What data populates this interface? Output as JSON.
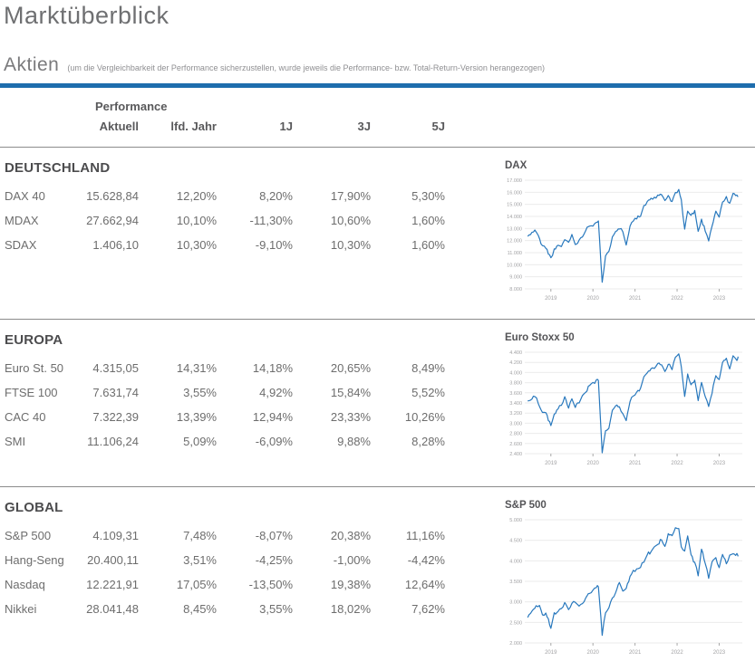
{
  "header": {
    "title": "Marktüberblick",
    "section": "Aktien",
    "note": "(um die Vergleichbarkeit der Performance sicherzustellen, wurde jeweils die Performance- bzw. Total-Return-Version herangezogen)"
  },
  "table": {
    "group_header": "Performance",
    "columns": [
      "Aktuell",
      "lfd. Jahr",
      "1J",
      "3J",
      "5J"
    ],
    "sections": [
      {
        "title": "DEUTSCHLAND",
        "rows": [
          {
            "name": "DAX 40",
            "values": [
              "15.628,84",
              "12,20%",
              "8,20%",
              "17,90%",
              "5,30%"
            ]
          },
          {
            "name": "MDAX",
            "values": [
              "27.662,94",
              "10,10%",
              "-11,30%",
              "10,60%",
              "1,60%"
            ]
          },
          {
            "name": "SDAX",
            "values": [
              "1.406,10",
              "10,30%",
              "-9,10%",
              "10,30%",
              "1,60%"
            ]
          }
        ]
      },
      {
        "title": "EUROPA",
        "rows": [
          {
            "name": "Euro St. 50",
            "values": [
              "4.315,05",
              "14,31%",
              "14,18%",
              "20,65%",
              "8,49%"
            ]
          },
          {
            "name": "FTSE 100",
            "values": [
              "7.631,74",
              "3,55%",
              "4,92%",
              "15,84%",
              "5,52%"
            ]
          },
          {
            "name": "CAC 40",
            "values": [
              "7.322,39",
              "13,39%",
              "12,94%",
              "23,33%",
              "10,26%"
            ]
          },
          {
            "name": "SMI",
            "values": [
              "11.106,24",
              "5,09%",
              "-6,09%",
              "9,88%",
              "8,28%"
            ]
          }
        ]
      },
      {
        "title": "GLOBAL",
        "rows": [
          {
            "name": "S&P 500",
            "values": [
              "4.109,31",
              "7,48%",
              "-8,07%",
              "20,38%",
              "11,16%"
            ]
          },
          {
            "name": "Hang-Seng",
            "values": [
              "20.400,11",
              "3,51%",
              "-4,25%",
              "-1,00%",
              "-4,42%"
            ]
          },
          {
            "name": "Nasdaq",
            "values": [
              "12.221,91",
              "17,05%",
              "-13,50%",
              "19,38%",
              "12,64%"
            ]
          },
          {
            "name": "Nikkei",
            "values": [
              "28.041,48",
              "8,45%",
              "3,55%",
              "18,02%",
              "7,62%"
            ]
          }
        ]
      }
    ]
  },
  "colors": {
    "accent_bar": "#1e6dad",
    "chart_line": "#2878bd",
    "grid": "#ebebeb",
    "axis_text": "#a2a2a4"
  },
  "chart_data": [
    {
      "type": "line",
      "title": "DAX",
      "legend": "none",
      "grid": "horizontal",
      "xlim": [
        2018.38,
        2023.55
      ],
      "ylim": [
        8000,
        17000
      ],
      "x_ticks": [
        {
          "label": "2019",
          "v": 2019
        },
        {
          "label": "2020",
          "v": 2020
        },
        {
          "label": "2021",
          "v": 2021
        },
        {
          "label": "2022",
          "v": 2022
        },
        {
          "label": "2023",
          "v": 2023
        }
      ],
      "y_ticks": [
        {
          "label": "17.000",
          "v": 17000
        },
        {
          "label": "16.000",
          "v": 16000
        },
        {
          "label": "15.000",
          "v": 15000
        },
        {
          "label": "14.000",
          "v": 14000
        },
        {
          "label": "13.000",
          "v": 13000
        },
        {
          "label": "12.000",
          "v": 12000
        },
        {
          "label": "11.000",
          "v": 11000
        },
        {
          "label": "10.000",
          "v": 10000
        },
        {
          "label": "9.000",
          "v": 9000
        },
        {
          "label": "8.000",
          "v": 8000
        }
      ],
      "points": [
        [
          2018.45,
          12350
        ],
        [
          2018.55,
          12600
        ],
        [
          2018.62,
          12900
        ],
        [
          2018.7,
          12350
        ],
        [
          2018.8,
          11550
        ],
        [
          2018.88,
          11400
        ],
        [
          2019.0,
          10550
        ],
        [
          2019.08,
          11200
        ],
        [
          2019.17,
          11550
        ],
        [
          2019.25,
          11550
        ],
        [
          2019.33,
          12050
        ],
        [
          2019.42,
          11900
        ],
        [
          2019.5,
          12450
        ],
        [
          2019.58,
          11750
        ],
        [
          2019.67,
          11950
        ],
        [
          2019.75,
          12350
        ],
        [
          2019.83,
          12950
        ],
        [
          2019.92,
          13250
        ],
        [
          2020.0,
          13300
        ],
        [
          2020.08,
          13550
        ],
        [
          2020.13,
          13700
        ],
        [
          2020.22,
          8450
        ],
        [
          2020.3,
          10650
        ],
        [
          2020.38,
          11100
        ],
        [
          2020.46,
          12350
        ],
        [
          2020.54,
          12850
        ],
        [
          2020.63,
          13050
        ],
        [
          2020.71,
          12750
        ],
        [
          2020.79,
          11600
        ],
        [
          2020.88,
          13300
        ],
        [
          2020.96,
          13700
        ],
        [
          2021.04,
          13900
        ],
        [
          2021.13,
          14050
        ],
        [
          2021.21,
          14800
        ],
        [
          2021.29,
          15150
        ],
        [
          2021.38,
          15400
        ],
        [
          2021.46,
          15550
        ],
        [
          2021.54,
          15650
        ],
        [
          2021.63,
          15850
        ],
        [
          2021.71,
          15250
        ],
        [
          2021.79,
          15700
        ],
        [
          2021.88,
          15150
        ],
        [
          2021.96,
          15900
        ],
        [
          2022.04,
          16250
        ],
        [
          2022.1,
          15300
        ],
        [
          2022.18,
          12950
        ],
        [
          2022.25,
          14450
        ],
        [
          2022.33,
          14050
        ],
        [
          2022.42,
          14450
        ],
        [
          2022.5,
          12750
        ],
        [
          2022.58,
          13700
        ],
        [
          2022.67,
          12850
        ],
        [
          2022.75,
          12050
        ],
        [
          2022.83,
          13250
        ],
        [
          2022.92,
          14450
        ],
        [
          2023.0,
          13950
        ],
        [
          2023.08,
          15200
        ],
        [
          2023.17,
          15550
        ],
        [
          2023.25,
          15000
        ],
        [
          2023.33,
          15900
        ],
        [
          2023.42,
          15700
        ],
        [
          2023.45,
          15630
        ]
      ]
    },
    {
      "type": "line",
      "title": "Euro Stoxx 50",
      "legend": "none",
      "grid": "horizontal",
      "xlim": [
        2018.38,
        2023.55
      ],
      "ylim": [
        2400,
        4400
      ],
      "x_ticks": [
        {
          "label": "2019",
          "v": 2019
        },
        {
          "label": "2020",
          "v": 2020
        },
        {
          "label": "2021",
          "v": 2021
        },
        {
          "label": "2022",
          "v": 2022
        },
        {
          "label": "2023",
          "v": 2023
        }
      ],
      "y_ticks": [
        {
          "label": "4.400",
          "v": 4400
        },
        {
          "label": "4.200",
          "v": 4200
        },
        {
          "label": "4.000",
          "v": 4000
        },
        {
          "label": "3.800",
          "v": 3800
        },
        {
          "label": "3.600",
          "v": 3600
        },
        {
          "label": "3.400",
          "v": 3400
        },
        {
          "label": "3.200",
          "v": 3200
        },
        {
          "label": "3.000",
          "v": 3000
        },
        {
          "label": "2.800",
          "v": 2800
        },
        {
          "label": "2.600",
          "v": 2600
        },
        {
          "label": "2.400",
          "v": 2400
        }
      ],
      "points": [
        [
          2018.45,
          3440
        ],
        [
          2018.55,
          3500
        ],
        [
          2018.62,
          3550
        ],
        [
          2018.7,
          3410
        ],
        [
          2018.8,
          3210
        ],
        [
          2018.88,
          3200
        ],
        [
          2019.0,
          2950
        ],
        [
          2019.08,
          3160
        ],
        [
          2019.17,
          3300
        ],
        [
          2019.25,
          3350
        ],
        [
          2019.33,
          3500
        ],
        [
          2019.42,
          3320
        ],
        [
          2019.5,
          3460
        ],
        [
          2019.58,
          3330
        ],
        [
          2019.67,
          3420
        ],
        [
          2019.75,
          3550
        ],
        [
          2019.83,
          3620
        ],
        [
          2019.92,
          3750
        ],
        [
          2020.0,
          3780
        ],
        [
          2020.08,
          3840
        ],
        [
          2020.13,
          3860
        ],
        [
          2020.22,
          2400
        ],
        [
          2020.3,
          2850
        ],
        [
          2020.38,
          2900
        ],
        [
          2020.46,
          3230
        ],
        [
          2020.54,
          3350
        ],
        [
          2020.63,
          3300
        ],
        [
          2020.71,
          3180
        ],
        [
          2020.79,
          3060
        ],
        [
          2020.88,
          3450
        ],
        [
          2020.96,
          3560
        ],
        [
          2021.04,
          3600
        ],
        [
          2021.13,
          3670
        ],
        [
          2021.21,
          3900
        ],
        [
          2021.29,
          3980
        ],
        [
          2021.38,
          4070
        ],
        [
          2021.46,
          4100
        ],
        [
          2021.54,
          4180
        ],
        [
          2021.63,
          4150
        ],
        [
          2021.71,
          4000
        ],
        [
          2021.79,
          4180
        ],
        [
          2021.88,
          4060
        ],
        [
          2021.96,
          4300
        ],
        [
          2022.04,
          4380
        ],
        [
          2022.1,
          4100
        ],
        [
          2022.18,
          3510
        ],
        [
          2022.25,
          3950
        ],
        [
          2022.33,
          3750
        ],
        [
          2022.42,
          3850
        ],
        [
          2022.5,
          3450
        ],
        [
          2022.58,
          3780
        ],
        [
          2022.67,
          3550
        ],
        [
          2022.75,
          3310
        ],
        [
          2022.83,
          3600
        ],
        [
          2022.92,
          3960
        ],
        [
          2023.0,
          3850
        ],
        [
          2023.08,
          4180
        ],
        [
          2023.17,
          4300
        ],
        [
          2023.25,
          4060
        ],
        [
          2023.33,
          4350
        ],
        [
          2023.42,
          4250
        ],
        [
          2023.45,
          4315
        ]
      ]
    },
    {
      "type": "line",
      "title": "S&P 500",
      "legend": "none",
      "grid": "horizontal",
      "xlim": [
        2018.38,
        2023.55
      ],
      "ylim": [
        2000,
        5000
      ],
      "x_ticks": [
        {
          "label": "2019",
          "v": 2019
        },
        {
          "label": "2020",
          "v": 2020
        },
        {
          "label": "2021",
          "v": 2021
        },
        {
          "label": "2022",
          "v": 2022
        },
        {
          "label": "2023",
          "v": 2023
        }
      ],
      "y_ticks": [
        {
          "label": "5.000",
          "v": 5000
        },
        {
          "label": "4.500",
          "v": 4500
        },
        {
          "label": "4.000",
          "v": 4000
        },
        {
          "label": "3.500",
          "v": 3500
        },
        {
          "label": "3.000",
          "v": 3000
        },
        {
          "label": "2.500",
          "v": 2500
        },
        {
          "label": "2.000",
          "v": 2000
        }
      ],
      "points": [
        [
          2018.45,
          2620
        ],
        [
          2018.55,
          2750
        ],
        [
          2018.65,
          2900
        ],
        [
          2018.73,
          2900
        ],
        [
          2018.8,
          2650
        ],
        [
          2018.88,
          2760
        ],
        [
          2019.0,
          2380
        ],
        [
          2019.08,
          2700
        ],
        [
          2019.17,
          2790
        ],
        [
          2019.25,
          2850
        ],
        [
          2019.33,
          2950
        ],
        [
          2019.42,
          2790
        ],
        [
          2019.5,
          2970
        ],
        [
          2019.58,
          3020
        ],
        [
          2019.67,
          2870
        ],
        [
          2019.75,
          2990
        ],
        [
          2019.83,
          3090
        ],
        [
          2019.92,
          3230
        ],
        [
          2020.0,
          3280
        ],
        [
          2020.08,
          3340
        ],
        [
          2020.13,
          3390
        ],
        [
          2020.22,
          2220
        ],
        [
          2020.3,
          2750
        ],
        [
          2020.38,
          2870
        ],
        [
          2020.46,
          3080
        ],
        [
          2020.54,
          3190
        ],
        [
          2020.63,
          3480
        ],
        [
          2020.71,
          3300
        ],
        [
          2020.79,
          3320
        ],
        [
          2020.88,
          3620
        ],
        [
          2020.96,
          3740
        ],
        [
          2021.04,
          3790
        ],
        [
          2021.13,
          3870
        ],
        [
          2021.21,
          4000
        ],
        [
          2021.29,
          4170
        ],
        [
          2021.38,
          4220
        ],
        [
          2021.46,
          4320
        ],
        [
          2021.54,
          4410
        ],
        [
          2021.63,
          4520
        ],
        [
          2021.71,
          4330
        ],
        [
          2021.79,
          4650
        ],
        [
          2021.88,
          4580
        ],
        [
          2021.96,
          4780
        ],
        [
          2022.04,
          4790
        ],
        [
          2022.1,
          4350
        ],
        [
          2022.18,
          4250
        ],
        [
          2022.25,
          4590
        ],
        [
          2022.33,
          4120
        ],
        [
          2022.42,
          3950
        ],
        [
          2022.5,
          3660
        ],
        [
          2022.58,
          4290
        ],
        [
          2022.67,
          3920
        ],
        [
          2022.75,
          3600
        ],
        [
          2022.83,
          3950
        ],
        [
          2022.92,
          4080
        ],
        [
          2023.0,
          3830
        ],
        [
          2023.08,
          4160
        ],
        [
          2023.17,
          3950
        ],
        [
          2023.25,
          4120
        ],
        [
          2023.33,
          4180
        ],
        [
          2023.42,
          4150
        ],
        [
          2023.45,
          4109
        ]
      ]
    }
  ]
}
